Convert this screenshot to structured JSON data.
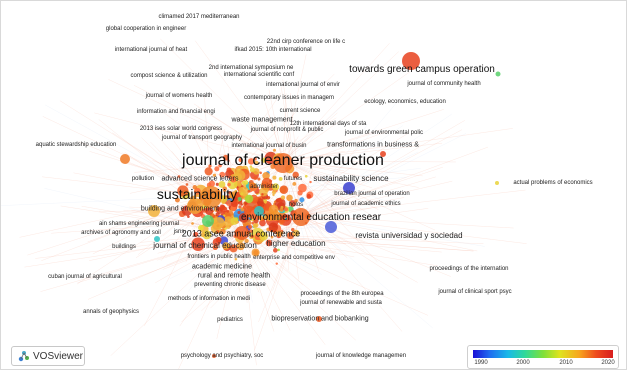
{
  "legend": {
    "ticks": [
      "1990",
      "2000",
      "2010",
      "2020"
    ],
    "gradient": [
      "#1a0fd6",
      "#19b9e8",
      "#7ee03a",
      "#dfe31f",
      "#f7a51e",
      "#d81e1e"
    ]
  },
  "app": {
    "logo_text": "VOSviewer"
  },
  "labels": [
    "climamed 2017 mediterranean",
    "global cooperation in engineer",
    "22nd cirp conference on life c",
    "international journal of heat",
    "ifkad 2015: 10th international",
    "2nd international symposium ne",
    "compost science & utilization",
    "international scientific conf",
    "towards green campus operation",
    "international journal of envir",
    "journal of community health",
    "journal of womens health",
    "contemporary issues in managem",
    "ecology, economics, education",
    "current science",
    "information and financial engi",
    "waste management",
    "12th international days of sta",
    "2013 ises solar world congress",
    "journal of nonprofit & public",
    "journal of environmental polic",
    "journal of transport geography",
    "international journal of busin",
    "transformations in business &",
    "aquatic stewardship education",
    "journal of cleaner production",
    "advanced science letters",
    "pollution",
    "sustainability",
    "administer",
    "futures",
    "sustainability science",
    "brazilian journal of operation",
    "actual problems of economics",
    "journal of academic ethics",
    "building and environment",
    "holos",
    "environmental education resear",
    "ain shams engineering journal",
    "archives of agronomy and soil",
    "jsns",
    "2013 asee annual conference",
    "revista universidad y sociedad",
    "buildings",
    "journal of chemical education",
    "higher education",
    "frontiers in public health",
    "enterprise and competitive env",
    "academic medicine",
    "rural and remote health",
    "proceedings of the internation",
    "cuban journal of agricultural",
    "preventing chronic disease",
    "proceedings of the 8th europea",
    "journal of clinical sport psyc",
    "methods of information in medi",
    "journal of renewable and susta",
    "annals of geophysics",
    "pediatrics",
    "biopreservation and biobanking",
    "psychology and psychiatry, soc",
    "journal of knowledge managemen"
  ]
}
